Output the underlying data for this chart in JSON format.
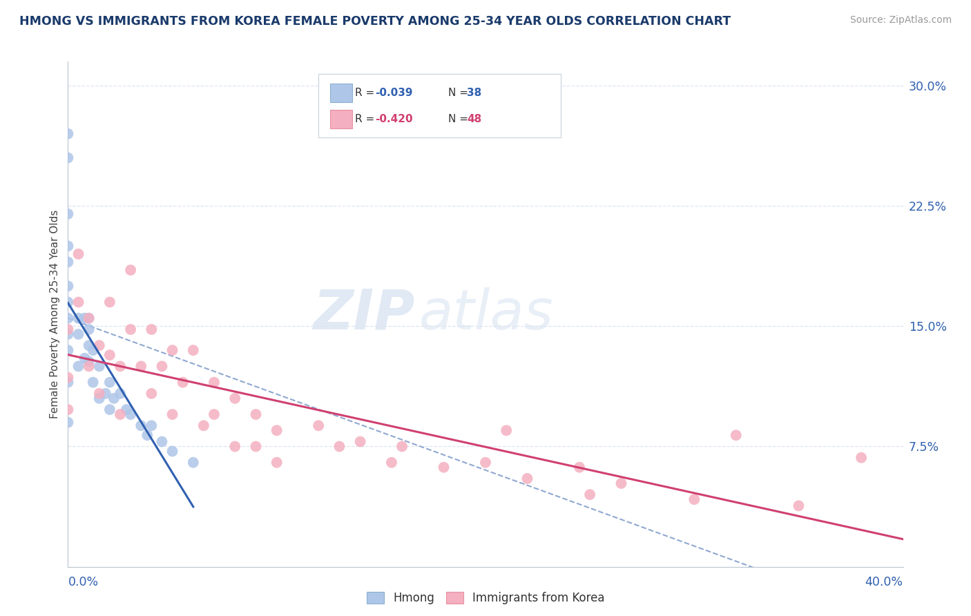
{
  "title": "HMONG VS IMMIGRANTS FROM KOREA FEMALE POVERTY AMONG 25-34 YEAR OLDS CORRELATION CHART",
  "source_text": "Source: ZipAtlas.com",
  "ylabel": "Female Poverty Among 25-34 Year Olds",
  "ylabel_right_ticks": [
    "30.0%",
    "22.5%",
    "15.0%",
    "7.5%"
  ],
  "ylabel_right_values": [
    0.3,
    0.225,
    0.15,
    0.075
  ],
  "xlim": [
    0.0,
    0.4
  ],
  "ylim": [
    0.0,
    0.315
  ],
  "hmong_color": "#aec6e8",
  "korea_color": "#f4afc0",
  "hmong_line_color": "#3060b0",
  "korea_line_color": "#d04070",
  "dashed_line_color": "#90a8d0",
  "grid_color": "#dde5f0",
  "background_color": "#ffffff",
  "watermark_zip": "ZIP",
  "watermark_atlas": "atlas",
  "hmong_scatter_x": [
    0.0,
    0.0,
    0.0,
    0.0,
    0.0,
    0.0,
    0.0,
    0.0,
    0.0,
    0.0,
    0.0,
    0.0,
    0.005,
    0.005,
    0.005,
    0.008,
    0.008,
    0.01,
    0.01,
    0.01,
    0.01,
    0.012,
    0.012,
    0.015,
    0.015,
    0.018,
    0.02,
    0.02,
    0.022,
    0.025,
    0.028,
    0.03,
    0.035,
    0.038,
    0.04,
    0.045,
    0.05,
    0.06
  ],
  "hmong_scatter_y": [
    0.27,
    0.255,
    0.22,
    0.2,
    0.19,
    0.175,
    0.165,
    0.155,
    0.145,
    0.135,
    0.115,
    0.09,
    0.155,
    0.145,
    0.125,
    0.155,
    0.13,
    0.155,
    0.148,
    0.138,
    0.128,
    0.135,
    0.115,
    0.125,
    0.105,
    0.108,
    0.115,
    0.098,
    0.105,
    0.108,
    0.098,
    0.095,
    0.088,
    0.082,
    0.088,
    0.078,
    0.072,
    0.065
  ],
  "korea_scatter_x": [
    0.0,
    0.0,
    0.0,
    0.005,
    0.005,
    0.01,
    0.01,
    0.015,
    0.015,
    0.02,
    0.02,
    0.025,
    0.025,
    0.03,
    0.03,
    0.035,
    0.04,
    0.04,
    0.045,
    0.05,
    0.05,
    0.055,
    0.06,
    0.065,
    0.07,
    0.07,
    0.08,
    0.08,
    0.09,
    0.09,
    0.1,
    0.1,
    0.12,
    0.13,
    0.14,
    0.155,
    0.16,
    0.18,
    0.2,
    0.21,
    0.22,
    0.245,
    0.25,
    0.265,
    0.3,
    0.32,
    0.35,
    0.38
  ],
  "korea_scatter_y": [
    0.148,
    0.118,
    0.098,
    0.195,
    0.165,
    0.155,
    0.125,
    0.138,
    0.108,
    0.165,
    0.132,
    0.125,
    0.095,
    0.185,
    0.148,
    0.125,
    0.148,
    0.108,
    0.125,
    0.135,
    0.095,
    0.115,
    0.135,
    0.088,
    0.115,
    0.095,
    0.105,
    0.075,
    0.095,
    0.075,
    0.085,
    0.065,
    0.088,
    0.075,
    0.078,
    0.065,
    0.075,
    0.062,
    0.065,
    0.085,
    0.055,
    0.062,
    0.045,
    0.052,
    0.042,
    0.082,
    0.038,
    0.068
  ]
}
